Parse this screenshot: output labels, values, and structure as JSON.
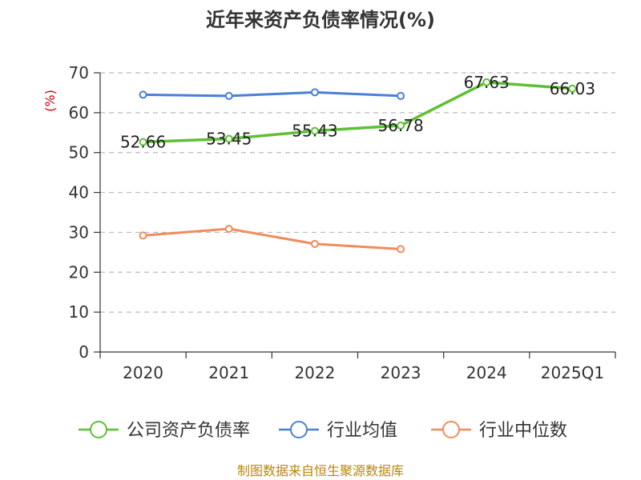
{
  "chart_data": {
    "type": "line",
    "title": "近年来资产负债率情况(%)",
    "ylabel": "(%)",
    "xlabel": "",
    "ylim": [
      0,
      70
    ],
    "yticks": [
      0,
      10,
      20,
      30,
      40,
      50,
      60,
      70
    ],
    "categories": [
      "2020",
      "2021",
      "2022",
      "2023",
      "2024",
      "2025Q1"
    ],
    "grid": true,
    "legend_position": "bottom",
    "series": [
      {
        "name": "公司资产负债率",
        "color": "#5ec034",
        "values": [
          52.66,
          53.45,
          55.43,
          56.78,
          67.63,
          66.03
        ],
        "labels": [
          "52.66",
          "53.45",
          "55.43",
          "56.78",
          "67.63",
          "66.03"
        ]
      },
      {
        "name": "行业均值",
        "color": "#4a7fd6",
        "values": [
          64.5,
          64.2,
          65.1,
          64.2,
          null,
          null
        ]
      },
      {
        "name": "行业中位数",
        "color": "#f08c5a",
        "values": [
          29.2,
          30.9,
          27.1,
          25.8,
          null,
          null
        ]
      }
    ],
    "source": "制图数据来自恒生聚源数据库"
  }
}
